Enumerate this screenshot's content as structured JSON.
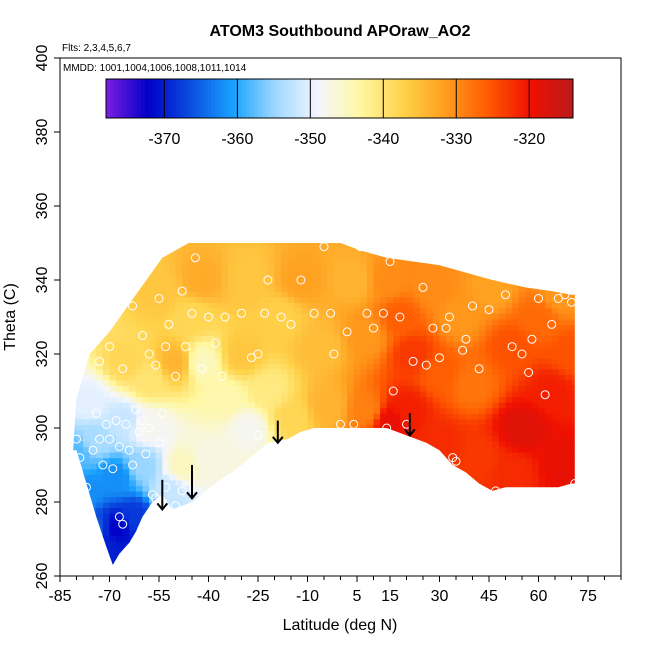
{
  "chart_data": {
    "type": "heatmap",
    "title": "ATOM3 Southbound APOraw_AO2",
    "annotations": [
      "Flts: 2,3,4,5,6,7",
      "MMDD: 1001,1004,1006,1008,1011,1014"
    ],
    "xlabel": "Latitude (deg N)",
    "ylabel": "Theta (C)",
    "xlim": [
      -85,
      85
    ],
    "ylim": [
      260,
      400
    ],
    "x_ticks": [
      -85,
      -70,
      -55,
      -40,
      -25,
      -10,
      5,
      15,
      30,
      45,
      60,
      75
    ],
    "y_ticks": [
      260,
      280,
      300,
      320,
      340,
      360,
      380,
      400
    ],
    "colorbar": {
      "range": [
        -378,
        -314
      ],
      "ticks": [
        -370,
        -360,
        -350,
        -340,
        -330,
        -320
      ],
      "colors": [
        "#7b1fe0",
        "#0000c8",
        "#0a4fe0",
        "#1aa3ff",
        "#9fd8ff",
        "#f4f6ff",
        "#fff7a0",
        "#ffd24a",
        "#ff9d1e",
        "#ff5a00",
        "#f01000",
        "#b81a1a"
      ]
    },
    "grid": false,
    "surface": [
      {
        "lat": -80,
        "theta": 293,
        "value": -358
      },
      {
        "lat": -77,
        "theta": 283,
        "value": -362
      },
      {
        "lat": -74,
        "theta": 273,
        "value": -366
      },
      {
        "lat": -71,
        "theta": 268,
        "value": -370
      },
      {
        "lat": -68,
        "theta": 273,
        "value": -372
      },
      {
        "lat": -62,
        "theta": 276,
        "value": -368
      },
      {
        "lat": -74,
        "theta": 297,
        "value": -354
      },
      {
        "lat": -68,
        "theta": 287,
        "value": -362
      },
      {
        "lat": -60,
        "theta": 290,
        "value": -355
      },
      {
        "lat": -52,
        "theta": 283,
        "value": -352
      },
      {
        "lat": -76,
        "theta": 307,
        "value": -350
      },
      {
        "lat": -66,
        "theta": 302,
        "value": -352
      },
      {
        "lat": -58,
        "theta": 300,
        "value": -348
      },
      {
        "lat": -48,
        "theta": 290,
        "value": -345
      },
      {
        "lat": -40,
        "theta": 292,
        "value": -347
      },
      {
        "lat": -65,
        "theta": 318,
        "value": -338
      },
      {
        "lat": -58,
        "theta": 313,
        "value": -340
      },
      {
        "lat": -50,
        "theta": 318,
        "value": -334
      },
      {
        "lat": -55,
        "theta": 337,
        "value": -336
      },
      {
        "lat": -45,
        "theta": 330,
        "value": -338
      },
      {
        "lat": -42,
        "theta": 340,
        "value": -333
      },
      {
        "lat": -42,
        "theta": 318,
        "value": -345
      },
      {
        "lat": -35,
        "theta": 308,
        "value": -344
      },
      {
        "lat": -28,
        "theta": 300,
        "value": -348
      },
      {
        "lat": -30,
        "theta": 320,
        "value": -336
      },
      {
        "lat": -22,
        "theta": 310,
        "value": -341
      },
      {
        "lat": -15,
        "theta": 303,
        "value": -338
      },
      {
        "lat": -28,
        "theta": 340,
        "value": -336
      },
      {
        "lat": -18,
        "theta": 330,
        "value": -337
      },
      {
        "lat": -12,
        "theta": 340,
        "value": -332
      },
      {
        "lat": -6,
        "theta": 322,
        "value": -335
      },
      {
        "lat": -4,
        "theta": 306,
        "value": -334
      },
      {
        "lat": 4,
        "theta": 340,
        "value": -334
      },
      {
        "lat": 8,
        "theta": 325,
        "value": -331
      },
      {
        "lat": 8,
        "theta": 305,
        "value": -329
      },
      {
        "lat": 14,
        "theta": 340,
        "value": -330
      },
      {
        "lat": 18,
        "theta": 330,
        "value": -326
      },
      {
        "lat": 20,
        "theta": 305,
        "value": -321
      },
      {
        "lat": 15,
        "theta": 302,
        "value": -319
      },
      {
        "lat": 22,
        "theta": 320,
        "value": -323
      },
      {
        "lat": 28,
        "theta": 338,
        "value": -330
      },
      {
        "lat": 30,
        "theta": 315,
        "value": -326
      },
      {
        "lat": 30,
        "theta": 296,
        "value": -322
      },
      {
        "lat": 36,
        "theta": 330,
        "value": -331
      },
      {
        "lat": 40,
        "theta": 312,
        "value": -328
      },
      {
        "lat": 42,
        "theta": 292,
        "value": -323
      },
      {
        "lat": 46,
        "theta": 338,
        "value": -332
      },
      {
        "lat": 52,
        "theta": 322,
        "value": -325
      },
      {
        "lat": 55,
        "theta": 300,
        "value": -318
      },
      {
        "lat": 52,
        "theta": 288,
        "value": -322
      },
      {
        "lat": 60,
        "theta": 330,
        "value": -327
      },
      {
        "lat": 64,
        "theta": 310,
        "value": -321
      },
      {
        "lat": 68,
        "theta": 290,
        "value": -319
      },
      {
        "lat": 70,
        "theta": 320,
        "value": -325
      },
      {
        "lat": 66,
        "theta": 336,
        "value": -331
      }
    ],
    "coverage": {
      "top": [
        [
          -80,
          308
        ],
        [
          -76,
          320
        ],
        [
          -70,
          326
        ],
        [
          -62,
          336
        ],
        [
          -54,
          346
        ],
        [
          -46,
          350
        ],
        [
          -20,
          350
        ],
        [
          -10,
          350
        ],
        [
          0,
          350
        ],
        [
          6,
          348
        ],
        [
          14,
          346
        ],
        [
          30,
          344
        ],
        [
          46,
          340
        ],
        [
          56,
          338
        ],
        [
          64,
          337
        ],
        [
          70,
          336
        ]
      ],
      "bottom": [
        [
          -80,
          294
        ],
        [
          -77,
          285
        ],
        [
          -74,
          276
        ],
        [
          -71,
          268
        ],
        [
          -69,
          263
        ],
        [
          -67,
          266
        ],
        [
          -64,
          269
        ],
        [
          -62,
          272
        ],
        [
          -60,
          276
        ],
        [
          -57,
          280
        ],
        [
          -54,
          282
        ],
        [
          -51,
          278
        ],
        [
          -45,
          280
        ],
        [
          -38,
          285
        ],
        [
          -30,
          290
        ],
        [
          -22,
          296
        ],
        [
          -16,
          297
        ],
        [
          -12,
          299
        ],
        [
          -8,
          300
        ],
        [
          0,
          300
        ],
        [
          8,
          300
        ],
        [
          14,
          300
        ],
        [
          20,
          298
        ],
        [
          26,
          296
        ],
        [
          30,
          294
        ],
        [
          34,
          290
        ],
        [
          38,
          288
        ],
        [
          42,
          285
        ],
        [
          46,
          283
        ],
        [
          50,
          284
        ],
        [
          56,
          284
        ],
        [
          62,
          284
        ],
        [
          66,
          284
        ],
        [
          70,
          285
        ]
      ],
      "right_lat": 71,
      "left_lat": -81
    },
    "samples": [
      [
        -80,
        297
      ],
      [
        -79,
        292
      ],
      [
        -77,
        284
      ],
      [
        -75,
        294
      ],
      [
        -74,
        304
      ],
      [
        -73,
        297
      ],
      [
        -72,
        290
      ],
      [
        -71,
        301
      ],
      [
        -70,
        297
      ],
      [
        -69,
        289
      ],
      [
        -68,
        302
      ],
      [
        -67,
        295
      ],
      [
        -67,
        276
      ],
      [
        -66,
        274
      ],
      [
        -65,
        301
      ],
      [
        -64,
        294
      ],
      [
        -63,
        290
      ],
      [
        -62,
        305
      ],
      [
        -61,
        299
      ],
      [
        -60,
        302
      ],
      [
        -59,
        293
      ],
      [
        -58,
        300
      ],
      [
        -57,
        282
      ],
      [
        -56,
        281
      ],
      [
        -55,
        296
      ],
      [
        -54,
        304
      ],
      [
        -53,
        284
      ],
      [
        -50,
        279
      ],
      [
        -48,
        283
      ],
      [
        -73,
        318
      ],
      [
        -70,
        322
      ],
      [
        -66,
        316
      ],
      [
        -63,
        333
      ],
      [
        -60,
        325
      ],
      [
        -58,
        320
      ],
      [
        -56,
        317
      ],
      [
        -55,
        335
      ],
      [
        -53,
        322
      ],
      [
        -52,
        328
      ],
      [
        -50,
        314
      ],
      [
        -48,
        337
      ],
      [
        -47,
        322
      ],
      [
        -45,
        331
      ],
      [
        -44,
        346
      ],
      [
        -42,
        316
      ],
      [
        -40,
        330
      ],
      [
        -38,
        323
      ],
      [
        -36,
        314
      ],
      [
        -35,
        330
      ],
      [
        -30,
        331
      ],
      [
        -27,
        319
      ],
      [
        -25,
        320
      ],
      [
        -23,
        331
      ],
      [
        -25,
        298
      ],
      [
        -22,
        340
      ],
      [
        -18,
        330
      ],
      [
        -15,
        328
      ],
      [
        -12,
        340
      ],
      [
        -8,
        331
      ],
      [
        -5,
        349
      ],
      [
        -3,
        331
      ],
      [
        -2,
        320
      ],
      [
        0,
        301
      ],
      [
        2,
        326
      ],
      [
        4,
        301
      ],
      [
        6,
        349
      ],
      [
        8,
        331
      ],
      [
        10,
        327
      ],
      [
        13,
        331
      ],
      [
        14,
        300
      ],
      [
        15,
        345
      ],
      [
        16,
        310
      ],
      [
        18,
        330
      ],
      [
        20,
        301
      ],
      [
        22,
        318
      ],
      [
        25,
        338
      ],
      [
        26,
        317
      ],
      [
        28,
        327
      ],
      [
        30,
        319
      ],
      [
        32,
        327
      ],
      [
        33,
        330
      ],
      [
        34,
        292
      ],
      [
        35,
        291
      ],
      [
        37,
        321
      ],
      [
        38,
        324
      ],
      [
        40,
        333
      ],
      [
        42,
        316
      ],
      [
        45,
        332
      ],
      [
        47,
        283
      ],
      [
        50,
        336
      ],
      [
        52,
        322
      ],
      [
        55,
        320
      ],
      [
        57,
        315
      ],
      [
        58,
        324
      ],
      [
        60,
        335
      ],
      [
        62,
        309
      ],
      [
        64,
        328
      ],
      [
        66,
        335
      ],
      [
        68,
        336
      ],
      [
        70,
        334
      ],
      [
        71,
        285
      ]
    ],
    "arrows": [
      {
        "lat": -54,
        "theta_top": 286,
        "theta_tip": 278
      },
      {
        "lat": -45,
        "theta_top": 290,
        "theta_tip": 281
      },
      {
        "lat": -19,
        "theta_top": 302,
        "theta_tip": 296
      },
      {
        "lat": 21,
        "theta_top": 304,
        "theta_tip": 298
      }
    ]
  }
}
